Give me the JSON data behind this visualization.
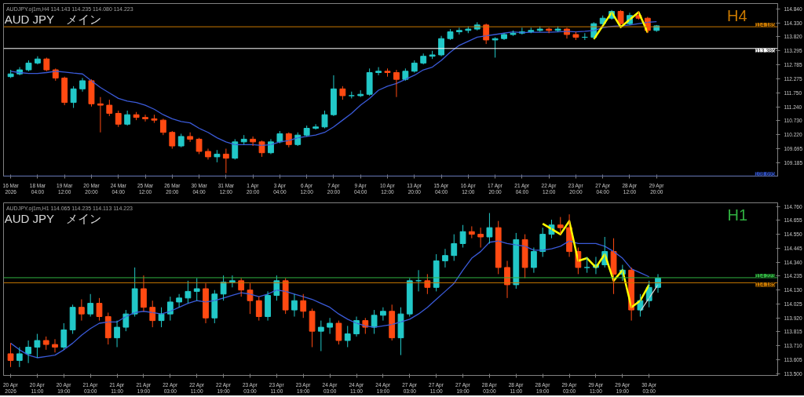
{
  "chart_data": [
    {
      "type": "candlestick",
      "title": "AUD JPY　メイン",
      "subtitle": "AUDJPY.oj1m,H4  114.143 114.235 114.080 114.223",
      "annotations": [
        "H4"
      ],
      "categories": [
        "16 Mar 2026",
        null,
        null,
        "18 Mar 04:00",
        null,
        null,
        "19 Mar 12:00",
        null,
        null,
        "20 Mar 20:00",
        null,
        null,
        "24 Mar 04:00",
        null,
        null,
        "25 Mar 12:00",
        null,
        null,
        "26 Mar 20:00",
        null,
        null,
        "30 Mar 04:00",
        null,
        null,
        "31 Mar 12:00",
        null,
        null,
        "1 Apr 20:00",
        null,
        null,
        "3 Apr 04:00",
        null,
        null,
        "6 Apr 12:00",
        null,
        null,
        "7 Apr 20:00",
        null,
        null,
        "9 Apr 04:00",
        null,
        null,
        "10 Apr 12:00",
        null,
        null,
        "13 Apr 20:00",
        null,
        null,
        "15 Apr 04:00",
        null,
        null,
        "16 Apr 12:00",
        null,
        null,
        "17 Apr 20:00",
        null,
        null,
        "21 Apr 04:00",
        null,
        null,
        "22 Apr 12:00",
        null,
        null,
        "23 Apr 20:00",
        null,
        null,
        "27 Apr 04:00",
        null,
        null,
        "28 Apr 12:00",
        null,
        null,
        "29 Apr 20:00"
      ],
      "ohlc": [
        [
          112.35,
          112.6,
          112.3,
          112.45
        ],
        [
          112.45,
          112.7,
          112.4,
          112.6
        ],
        [
          112.6,
          112.95,
          112.55,
          112.85
        ],
        [
          112.85,
          113.1,
          112.8,
          113.0
        ],
        [
          113.0,
          113.05,
          112.55,
          112.6
        ],
        [
          112.6,
          112.65,
          112.2,
          112.3
        ],
        [
          112.3,
          112.35,
          111.3,
          111.4
        ],
        [
          111.4,
          112.0,
          111.2,
          111.9
        ],
        [
          111.9,
          112.3,
          111.8,
          112.2
        ],
        [
          112.2,
          112.25,
          111.25,
          111.35
        ],
        [
          111.35,
          111.6,
          110.3,
          111.3
        ],
        [
          111.3,
          111.5,
          110.9,
          111.0
        ],
        [
          111.0,
          111.1,
          110.5,
          110.6
        ],
        [
          110.6,
          111.1,
          110.55,
          110.95
        ],
        [
          110.95,
          111.05,
          110.75,
          110.85
        ],
        [
          110.85,
          110.95,
          110.7,
          110.8
        ],
        [
          110.8,
          110.95,
          110.65,
          110.75
        ],
        [
          110.75,
          110.8,
          110.2,
          110.3
        ],
        [
          110.3,
          110.35,
          109.7,
          109.8
        ],
        [
          109.8,
          110.25,
          109.75,
          110.15
        ],
        [
          110.15,
          110.3,
          109.95,
          110.05
        ],
        [
          110.05,
          110.1,
          109.5,
          109.6
        ],
        [
          109.6,
          109.7,
          109.3,
          109.4
        ],
        [
          109.4,
          109.65,
          109.2,
          109.5
        ],
        [
          109.5,
          109.7,
          108.8,
          109.35
        ],
        [
          109.35,
          110.05,
          109.3,
          109.95
        ],
        [
          109.95,
          110.2,
          109.85,
          110.05
        ],
        [
          110.05,
          110.15,
          109.8,
          109.95
        ],
        [
          109.95,
          110.0,
          109.4,
          109.55
        ],
        [
          109.55,
          110.05,
          109.5,
          109.95
        ],
        [
          109.95,
          110.35,
          109.9,
          110.25
        ],
        [
          110.25,
          110.3,
          109.75,
          109.85
        ],
        [
          109.85,
          110.3,
          109.8,
          110.2
        ],
        [
          110.2,
          110.55,
          110.15,
          110.45
        ],
        [
          110.45,
          110.6,
          110.4,
          110.5
        ],
        [
          110.5,
          111.1,
          110.45,
          110.95
        ],
        [
          110.95,
          112.4,
          110.9,
          111.9
        ],
        [
          111.9,
          112.0,
          111.5,
          111.65
        ],
        [
          111.65,
          111.8,
          111.55,
          111.65
        ],
        [
          111.65,
          111.85,
          111.6,
          111.7
        ],
        [
          111.7,
          112.65,
          111.65,
          112.5
        ],
        [
          112.5,
          112.7,
          112.4,
          112.55
        ],
        [
          112.55,
          112.65,
          112.35,
          112.5
        ],
        [
          112.5,
          112.6,
          111.6,
          112.25
        ],
        [
          112.25,
          112.65,
          112.2,
          112.55
        ],
        [
          112.55,
          112.95,
          112.5,
          112.85
        ],
        [
          112.85,
          113.2,
          112.8,
          113.1
        ],
        [
          113.1,
          113.3,
          113.0,
          113.15
        ],
        [
          113.15,
          113.85,
          113.1,
          113.75
        ],
        [
          113.75,
          114.1,
          113.7,
          114.0
        ],
        [
          114.0,
          114.15,
          113.9,
          114.05
        ],
        [
          114.05,
          114.2,
          113.95,
          114.1
        ],
        [
          114.1,
          114.35,
          114.05,
          114.25
        ],
        [
          114.25,
          114.3,
          113.55,
          113.7
        ],
        [
          113.7,
          113.8,
          113.05,
          113.75
        ],
        [
          113.75,
          113.95,
          113.7,
          113.9
        ],
        [
          113.9,
          114.05,
          113.85,
          113.95
        ],
        [
          113.95,
          114.15,
          113.9,
          114.0
        ],
        [
          114.0,
          114.15,
          113.95,
          114.05
        ],
        [
          114.05,
          114.2,
          114.0,
          114.1
        ],
        [
          114.1,
          114.15,
          113.95,
          114.05
        ],
        [
          114.05,
          114.2,
          114.0,
          114.1
        ],
        [
          114.1,
          114.15,
          113.75,
          113.9
        ],
        [
          113.9,
          114.0,
          113.7,
          113.8
        ],
        [
          113.8,
          113.95,
          113.7,
          113.8
        ],
        [
          113.8,
          114.35,
          113.75,
          114.3
        ],
        [
          114.3,
          114.6,
          114.25,
          114.5
        ],
        [
          114.5,
          114.8,
          114.45,
          114.75
        ],
        [
          114.75,
          114.8,
          114.25,
          114.3
        ],
        [
          114.3,
          114.7,
          114.25,
          114.6
        ],
        [
          114.6,
          114.75,
          114.45,
          114.5
        ],
        [
          114.5,
          114.55,
          113.95,
          114.05
        ],
        [
          114.05,
          114.25,
          114.0,
          114.22
        ]
      ],
      "series": [
        {
          "type": "line",
          "color": "#3a5ad8",
          "values": [
            112.55,
            112.5,
            112.47,
            112.47,
            112.5,
            112.55,
            112.52,
            112.48,
            112.45,
            112.2,
            111.95,
            111.75,
            111.55,
            111.45,
            111.4,
            111.3,
            111.15,
            110.95,
            110.8,
            110.7,
            110.65,
            110.45,
            110.3,
            110.1,
            109.95,
            109.85,
            109.85,
            109.85,
            109.82,
            109.85,
            109.95,
            110.0,
            110.1,
            110.15,
            110.2,
            110.3,
            110.5,
            110.75,
            111.0,
            111.3,
            111.55,
            111.85,
            112.0,
            112.1,
            112.25,
            112.4,
            112.6,
            112.7,
            112.95,
            113.25,
            113.5,
            113.65,
            113.8,
            113.85,
            113.9,
            113.95,
            114.0,
            113.97,
            113.98,
            113.98,
            113.98,
            114.0,
            114.02,
            114.0,
            114.02,
            114.05,
            114.15,
            114.2,
            114.22,
            114.25,
            114.3,
            114.35,
            114.37
          ]
        },
        {
          "type": "line",
          "color": "#ffff00",
          "values": [
            null,
            null,
            null,
            null,
            null,
            null,
            null,
            null,
            null,
            null,
            null,
            null,
            null,
            null,
            null,
            null,
            null,
            null,
            null,
            null,
            null,
            null,
            null,
            null,
            null,
            null,
            null,
            null,
            null,
            null,
            null,
            null,
            null,
            null,
            null,
            null,
            null,
            null,
            null,
            null,
            null,
            null,
            null,
            null,
            null,
            null,
            null,
            null,
            null,
            null,
            null,
            null,
            null,
            null,
            null,
            null,
            null,
            null,
            null,
            null,
            null,
            null,
            null,
            null,
            null,
            113.73,
            114.22,
            114.72,
            114.17,
            114.45,
            114.72,
            113.97,
            null
          ]
        }
      ],
      "ylim": [
        108.69,
        115.04
      ],
      "yticks": [
        {
          "value": 109.185,
          "label": "109.185"
        },
        {
          "value": 109.695,
          "label": "109.695"
        },
        {
          "value": 110.22,
          "label": "110.220"
        },
        {
          "value": 110.73,
          "label": "110.730"
        },
        {
          "value": 111.24,
          "label": "111.240"
        },
        {
          "value": 111.75,
          "label": "111.750"
        },
        {
          "value": 112.275,
          "label": "112.275"
        },
        {
          "value": 112.785,
          "label": "112.785"
        },
        {
          "value": 113.295,
          "label": "113.295"
        },
        {
          "value": 113.82,
          "label": "113.820"
        },
        {
          "value": 114.33,
          "label": "114.330"
        },
        {
          "value": 114.84,
          "label": "114.840"
        }
      ],
      "ref_lines": [
        {
          "axis": "y",
          "value": 114.185,
          "label": "114.185",
          "color": "#c87800"
        },
        {
          "axis": "y",
          "value": 113.386,
          "label": "113.386",
          "color": "#ffffff"
        },
        {
          "axis": "y",
          "value": 108.695,
          "label": "108.695",
          "color": "#3050c0"
        }
      ]
    },
    {
      "type": "candlestick",
      "title": "AUD JPY　メイン",
      "subtitle": "AUDJPY.oj1m,H1  114.065 114.235 114.113 114.223",
      "annotations": [
        "H1"
      ],
      "categories": [
        "20 Apr 2026",
        null,
        null,
        "20 Apr 11:00",
        null,
        null,
        "20 Apr 19:00",
        null,
        null,
        "21 Apr 03:00",
        null,
        null,
        "21 Apr 11:00",
        null,
        null,
        "21 Apr 19:00",
        null,
        null,
        "22 Apr 03:00",
        null,
        null,
        "22 Apr 11:00",
        null,
        null,
        "22 Apr 19:00",
        null,
        null,
        "23 Apr 03:00",
        null,
        null,
        "23 Apr 11:00",
        null,
        null,
        "23 Apr 19:00",
        null,
        null,
        "24 Apr 03:00",
        null,
        null,
        "24 Apr 11:00",
        null,
        null,
        "24 Apr 19:00",
        null,
        null,
        "27 Apr 03:00",
        null,
        null,
        "27 Apr 11:00",
        null,
        null,
        "27 Apr 19:00",
        null,
        null,
        "28 Apr 03:00",
        null,
        null,
        "28 Apr 11:00",
        null,
        null,
        "28 Apr 19:00",
        null,
        null,
        "29 Apr 03:00",
        null,
        null,
        "29 Apr 11:00",
        null,
        null,
        "29 Apr 19:00",
        null,
        null,
        "30 Apr 03:00",
        null
      ],
      "ohlc": [
        [
          113.65,
          113.73,
          113.55,
          113.6
        ],
        [
          113.6,
          113.7,
          113.55,
          113.65
        ],
        [
          113.65,
          113.75,
          113.58,
          113.7
        ],
        [
          113.7,
          113.8,
          113.62,
          113.75
        ],
        [
          113.75,
          113.78,
          113.68,
          113.72
        ],
        [
          113.72,
          113.76,
          113.66,
          113.7
        ],
        [
          113.7,
          113.88,
          113.68,
          113.83
        ],
        [
          113.83,
          114.02,
          113.8,
          114.0
        ],
        [
          114.0,
          114.06,
          113.9,
          113.95
        ],
        [
          113.95,
          114.1,
          113.93,
          114.03
        ],
        [
          114.03,
          114.07,
          113.9,
          113.93
        ],
        [
          113.93,
          113.96,
          113.72,
          113.77
        ],
        [
          113.77,
          113.9,
          113.7,
          113.85
        ],
        [
          113.85,
          113.98,
          113.82,
          113.95
        ],
        [
          113.95,
          114.3,
          113.93,
          114.14
        ],
        [
          114.14,
          114.24,
          113.97,
          114.0
        ],
        [
          114.0,
          114.05,
          113.85,
          113.9
        ],
        [
          113.9,
          114.0,
          113.85,
          113.95
        ],
        [
          113.95,
          114.08,
          113.9,
          114.04
        ],
        [
          114.04,
          114.1,
          114.0,
          114.07
        ],
        [
          114.07,
          114.2,
          114.03,
          114.12
        ],
        [
          114.12,
          114.22,
          114.05,
          114.14
        ],
        [
          114.14,
          114.18,
          113.88,
          113.92
        ],
        [
          113.92,
          114.13,
          113.88,
          114.1
        ],
        [
          114.1,
          114.24,
          114.05,
          114.19
        ],
        [
          114.19,
          114.24,
          114.15,
          114.2
        ],
        [
          114.2,
          114.22,
          114.08,
          114.13
        ],
        [
          114.13,
          114.18,
          113.95,
          114.05
        ],
        [
          114.05,
          114.08,
          113.9,
          113.93
        ],
        [
          113.93,
          114.12,
          113.9,
          114.09
        ],
        [
          114.09,
          114.24,
          114.05,
          114.2
        ],
        [
          114.2,
          114.22,
          113.95,
          113.98
        ],
        [
          113.98,
          114.1,
          113.93,
          114.05
        ],
        [
          114.05,
          114.1,
          113.92,
          113.97
        ],
        [
          113.97,
          113.99,
          113.7,
          113.82
        ],
        [
          113.82,
          113.9,
          113.67,
          113.85
        ],
        [
          113.85,
          113.92,
          113.8,
          113.88
        ],
        [
          113.88,
          113.9,
          113.72,
          113.75
        ],
        [
          113.75,
          113.86,
          113.7,
          113.8
        ],
        [
          113.8,
          113.93,
          113.78,
          113.9
        ],
        [
          113.9,
          113.92,
          113.8,
          113.85
        ],
        [
          113.85,
          113.98,
          113.8,
          113.94
        ],
        [
          113.94,
          114.0,
          113.9,
          113.97
        ],
        [
          113.97,
          114.02,
          113.75,
          113.77
        ],
        [
          113.77,
          114.0,
          113.64,
          113.95
        ],
        [
          113.95,
          114.22,
          113.93,
          114.2
        ],
        [
          114.2,
          114.28,
          114.12,
          114.2
        ],
        [
          114.2,
          114.25,
          114.1,
          114.15
        ],
        [
          114.15,
          114.4,
          114.12,
          114.35
        ],
        [
          114.35,
          114.44,
          114.3,
          114.39
        ],
        [
          114.39,
          114.55,
          114.35,
          114.48
        ],
        [
          114.48,
          114.62,
          114.45,
          114.57
        ],
        [
          114.57,
          114.61,
          114.52,
          114.55
        ],
        [
          114.55,
          114.6,
          114.45,
          114.53
        ],
        [
          114.53,
          114.71,
          114.48,
          114.6
        ],
        [
          114.6,
          114.65,
          114.25,
          114.3
        ],
        [
          114.3,
          114.35,
          114.07,
          114.17
        ],
        [
          114.17,
          114.56,
          114.14,
          114.51
        ],
        [
          114.51,
          114.55,
          114.22,
          114.3
        ],
        [
          114.3,
          114.45,
          114.26,
          114.42
        ],
        [
          114.42,
          114.6,
          114.38,
          114.55
        ],
        [
          114.55,
          114.66,
          114.52,
          114.62
        ],
        [
          114.62,
          114.68,
          114.55,
          114.6
        ],
        [
          114.6,
          114.7,
          114.38,
          114.42
        ],
        [
          114.42,
          114.45,
          114.25,
          114.3
        ],
        [
          114.3,
          114.38,
          114.26,
          114.3
        ],
        [
          114.3,
          114.38,
          114.25,
          114.32
        ],
        [
          114.32,
          114.53,
          114.3,
          114.42
        ],
        [
          114.42,
          114.52,
          114.1,
          114.25
        ],
        [
          114.25,
          114.32,
          114.2,
          114.28
        ],
        [
          114.28,
          114.3,
          113.9,
          113.98
        ],
        [
          113.98,
          114.1,
          113.93,
          114.05
        ],
        [
          114.05,
          114.2,
          114.0,
          114.15
        ],
        [
          114.15,
          114.25,
          114.11,
          114.22
        ]
      ],
      "series": [
        {
          "type": "line",
          "color": "#3a5ad8",
          "values": [
            113.73,
            113.68,
            113.64,
            113.62,
            113.63,
            113.64,
            113.68,
            113.73,
            113.79,
            113.84,
            113.88,
            113.89,
            113.89,
            113.93,
            113.96,
            113.97,
            113.96,
            113.95,
            113.97,
            114.0,
            114.03,
            114.05,
            114.04,
            114.05,
            114.07,
            114.09,
            114.11,
            114.1,
            114.08,
            114.1,
            114.13,
            114.12,
            114.1,
            114.08,
            114.06,
            114.03,
            114.0,
            113.95,
            113.91,
            113.88,
            113.86,
            113.85,
            113.86,
            113.87,
            113.89,
            113.91,
            113.95,
            114.0,
            114.06,
            114.12,
            114.18,
            114.28,
            114.37,
            114.42,
            114.49,
            114.5,
            114.48,
            114.47,
            114.46,
            114.43,
            114.43,
            114.44,
            114.46,
            114.5,
            114.48,
            114.48,
            114.48,
            114.46,
            114.42,
            114.37,
            114.29,
            114.26,
            114.23,
            null
          ]
        },
        {
          "type": "line",
          "color": "#ffff00",
          "values": [
            null,
            null,
            null,
            null,
            null,
            null,
            null,
            null,
            null,
            null,
            null,
            null,
            null,
            null,
            null,
            null,
            null,
            null,
            null,
            null,
            null,
            null,
            null,
            null,
            null,
            null,
            null,
            null,
            null,
            null,
            null,
            null,
            null,
            null,
            null,
            null,
            null,
            null,
            null,
            null,
            null,
            null,
            null,
            null,
            null,
            null,
            null,
            null,
            null,
            null,
            null,
            null,
            null,
            null,
            null,
            null,
            null,
            null,
            null,
            null,
            114.63,
            114.59,
            114.55,
            114.65,
            114.35,
            114.37,
            114.3,
            114.4,
            114.2,
            114.28,
            114.0,
            114.05,
            114.17,
            null
          ]
        },
        {
          "type": "line",
          "color": "#d0d0d0",
          "values": [
            null,
            null,
            null,
            null,
            null,
            null,
            null,
            null,
            null,
            null,
            null,
            null,
            null,
            null,
            null,
            null,
            null,
            null,
            null,
            null,
            null,
            null,
            null,
            null,
            null,
            null,
            null,
            null,
            null,
            null,
            null,
            null,
            null,
            null,
            null,
            null,
            null,
            null,
            null,
            null,
            null,
            null,
            null,
            null,
            null,
            null,
            null,
            null,
            null,
            null,
            null,
            null,
            null,
            null,
            null,
            null,
            null,
            null,
            null,
            null,
            null,
            null,
            null,
            null,
            null,
            null,
            null,
            null,
            null,
            null,
            null,
            113.97,
            114.07,
            114.17
          ]
        }
      ],
      "ylim": [
        113.487,
        114.787
      ],
      "yticks": [
        {
          "value": 113.5,
          "label": "113.500"
        },
        {
          "value": 113.605,
          "label": "113.605"
        },
        {
          "value": 113.71,
          "label": "113.710"
        },
        {
          "value": 113.815,
          "label": "113.815"
        },
        {
          "value": 113.92,
          "label": "113.920"
        },
        {
          "value": 114.025,
          "label": "114.025"
        },
        {
          "value": 114.13,
          "label": "114.130"
        },
        {
          "value": 114.235,
          "label": "114.235"
        },
        {
          "value": 114.34,
          "label": "114.340"
        },
        {
          "value": 114.445,
          "label": "114.445"
        },
        {
          "value": 114.55,
          "label": "114.550"
        },
        {
          "value": 114.655,
          "label": "114.655"
        },
        {
          "value": 114.76,
          "label": "114.760"
        }
      ],
      "ref_lines": [
        {
          "axis": "y",
          "value": 114.223,
          "label": "114.223",
          "color": "#30b040"
        },
        {
          "axis": "y",
          "value": 114.185,
          "label": "114.185",
          "color": "#c87800"
        }
      ]
    }
  ]
}
